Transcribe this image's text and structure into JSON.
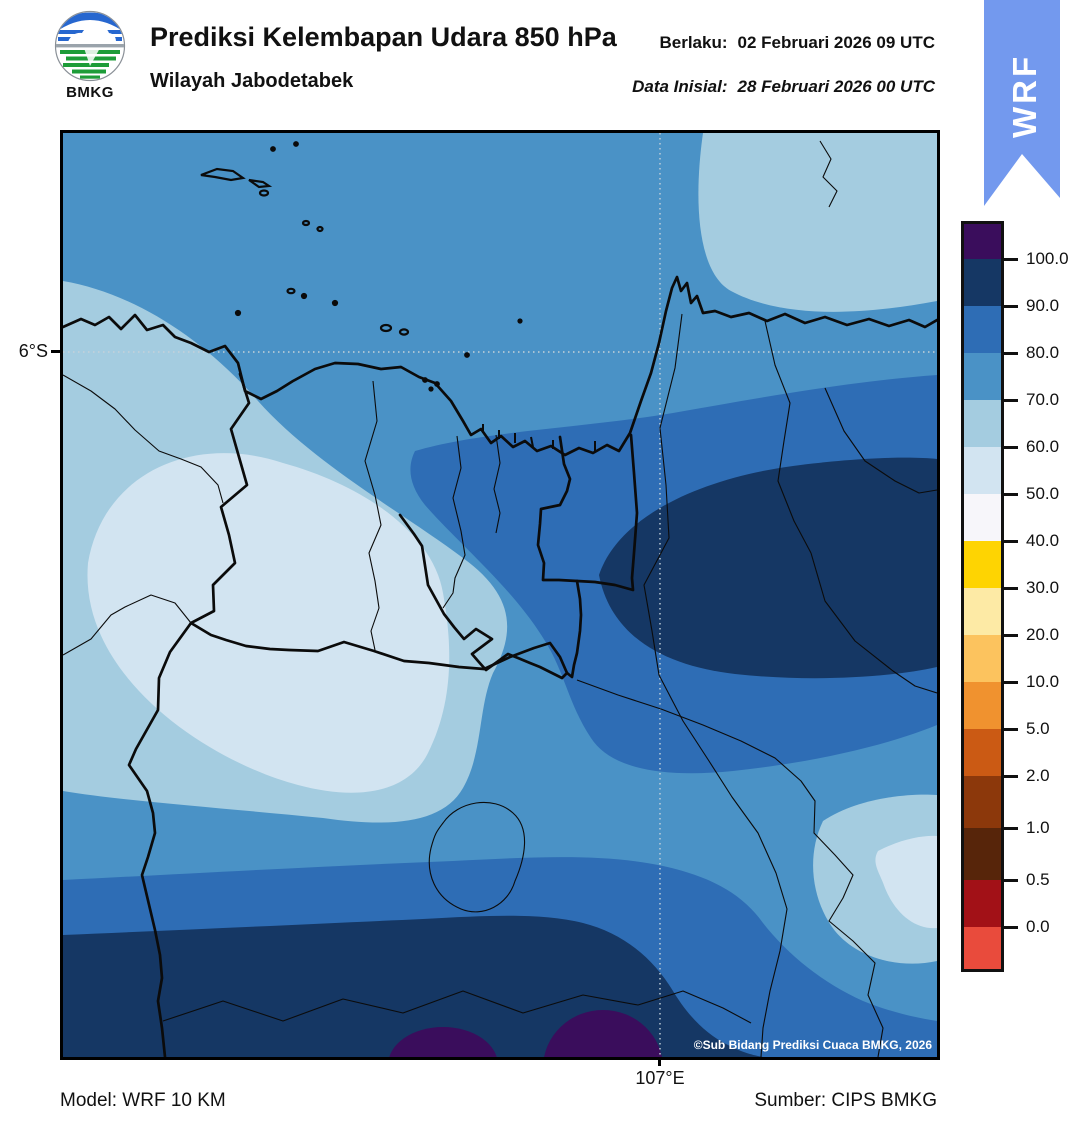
{
  "header": {
    "logo_caption": "BMKG",
    "title": "Prediksi Kelembapan Udara 850 hPa",
    "subtitle": "Wilayah Jabodetabek",
    "valid_label": "Berlaku:",
    "valid_value": "02 Februari 2026 09 UTC",
    "initial_label": "Data Inisial:",
    "initial_value": "28 Februari 2026 00 UTC",
    "ribbon": "WRF"
  },
  "map": {
    "lat_tick": "6°S",
    "lon_tick": "107°E",
    "watermark": "©Sub Bidang Prediksi Cuaca BMKG, 2026"
  },
  "footer": {
    "model": "Model: WRF 10 KM",
    "source": "Sumber: CIPS BMKG"
  },
  "colorbar": {
    "tick_labels": [
      "100.0",
      "90.0",
      "80.0",
      "70.0",
      "60.0",
      "50.0",
      "40.0",
      "30.0",
      "20.0",
      "10.0",
      "5.0",
      "2.0",
      "1.0",
      "0.5",
      "0.0"
    ],
    "segment_colors": [
      "#3a0d5c",
      "#153764",
      "#2e6db5",
      "#4a92c6",
      "#a4cce0",
      "#d2e4f1",
      "#f7f6fa",
      "#fed402",
      "#fdeaa5",
      "#fcc35e",
      "#f0922f",
      "#cb5a14",
      "#8c380b",
      "#57250a",
      "#a21117",
      "#e94b3c"
    ],
    "segment_heights": [
      35,
      47,
      47,
      47,
      47,
      47,
      47,
      47,
      47,
      47,
      47,
      47,
      52,
      52,
      47,
      42
    ]
  },
  "palette": {
    "rh_70_80_bg": "#4a92c6",
    "rh_60_70": "#a4cce0",
    "rh_50_60": "#d2e4f1",
    "rh_80_90": "#2e6db5",
    "rh_90_100": "#153764",
    "rh_100_plus": "#3a0d5c",
    "ribbon_blue": "#7399ee",
    "boundary_black": "#0b0b0b",
    "grid_dotted": "#c6d2d9",
    "logo_blue": "#2767cf",
    "logo_green": "#1d9c38"
  }
}
